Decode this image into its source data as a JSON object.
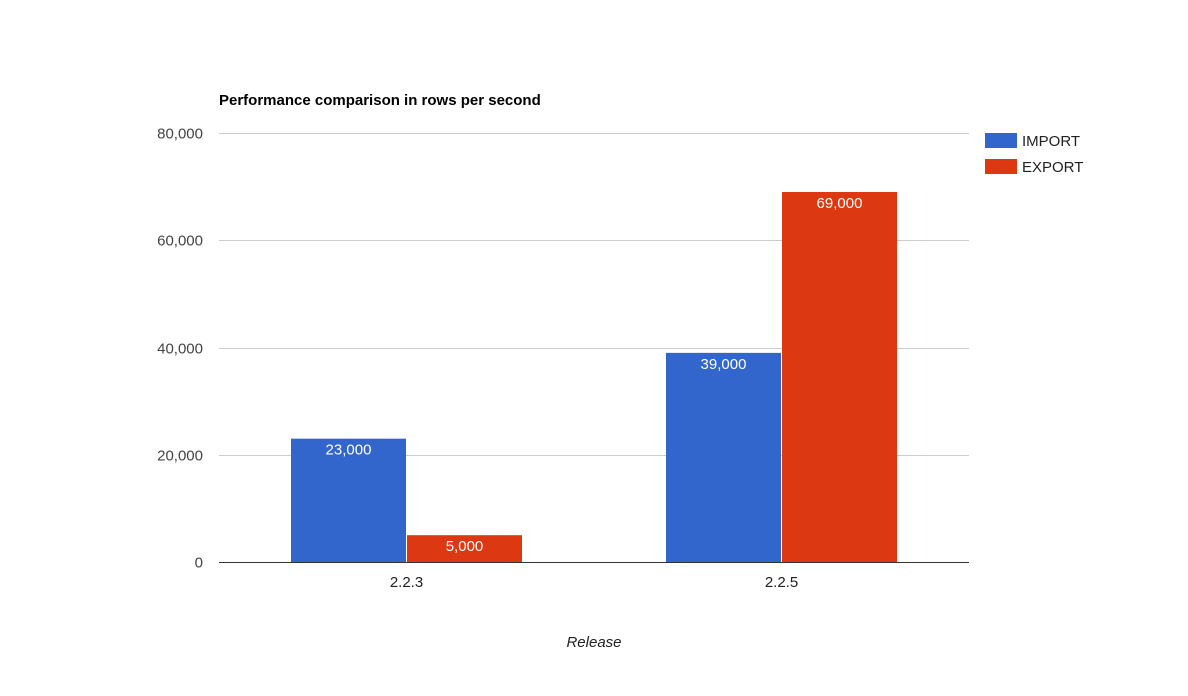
{
  "chart_data": {
    "type": "bar",
    "title": "Performance comparison in rows per second",
    "xlabel": "Release",
    "ylabel": "",
    "categories": [
      "2.2.3",
      "2.2.5"
    ],
    "series": [
      {
        "name": "IMPORT",
        "values": [
          23000,
          39000
        ],
        "labels": [
          "23,000",
          "39,000"
        ],
        "color": "#3366cc"
      },
      {
        "name": "EXPORT",
        "values": [
          5000,
          69000
        ],
        "labels": [
          "5,000",
          "69,000"
        ],
        "color": "#dc3912"
      }
    ],
    "ylim": [
      0,
      80000
    ],
    "yticks": [
      0,
      20000,
      40000,
      60000,
      80000
    ],
    "ytick_labels": [
      "0",
      "20,000",
      "40,000",
      "60,000",
      "80,000"
    ],
    "grid": true,
    "legend_position": "right"
  }
}
